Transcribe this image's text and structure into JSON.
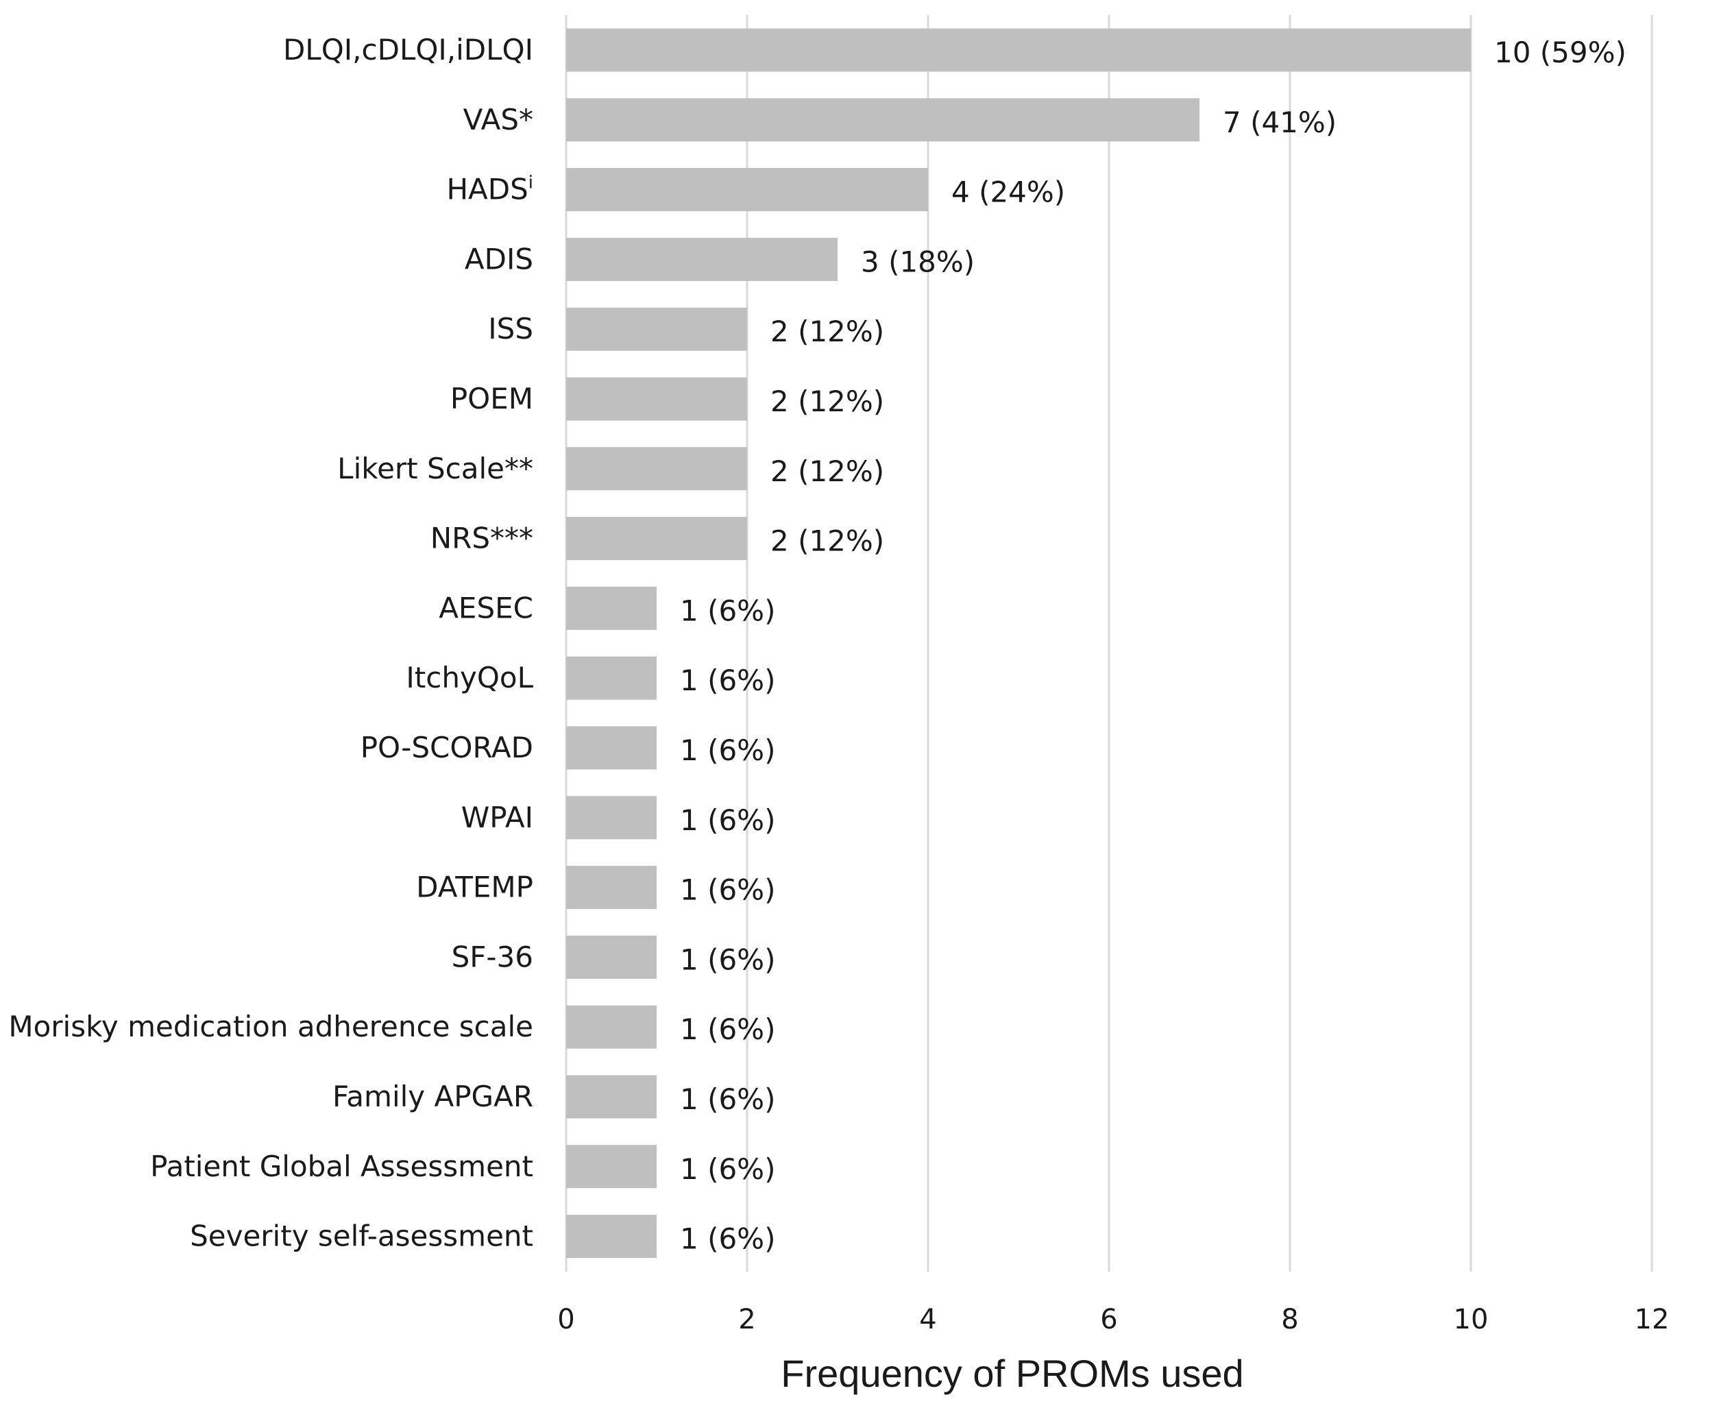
{
  "chart_data": {
    "type": "bar",
    "orientation": "horizontal",
    "title": "",
    "xlabel": "Frequency of PROMs used",
    "ylabel": "",
    "xlim": [
      0,
      12
    ],
    "xticks": [
      0,
      2,
      4,
      6,
      8,
      10,
      12
    ],
    "grid": "vertical",
    "legend": "none",
    "bar_color": "#bfbfbf",
    "grid_color": "#d9d9d9",
    "categories": [
      "DLQI,cDLQI,iDLQI",
      "VAS*",
      "HADS",
      "ADIS",
      "ISS",
      "POEM",
      "Likert Scale**",
      "NRS***",
      "AESEC",
      "ItchyQoL",
      "PO-SCORAD",
      "WPAI",
      "DATEMP",
      "SF-36",
      "Morisky medication adherence scale",
      "Family APGAR",
      "Patient Global Assessment",
      "Severity self-asessment"
    ],
    "superscripts": [
      "",
      "",
      "i",
      "",
      "",
      "",
      "",
      "",
      "",
      "",
      "",
      "",
      "",
      "",
      "",
      "",
      "",
      ""
    ],
    "values": [
      10,
      7,
      4,
      3,
      2,
      2,
      2,
      2,
      1,
      1,
      1,
      1,
      1,
      1,
      1,
      1,
      1,
      1
    ],
    "data_labels": [
      "10 (59%)",
      "7 (41%)",
      "4 (24%)",
      "3 (18%)",
      "2 (12%)",
      "2 (12%)",
      "2 (12%)",
      "2 (12%)",
      "1 (6%)",
      "1 (6%)",
      "1 (6%)",
      "1 (6%)",
      "1 (6%)",
      "1 (6%)",
      "1 (6%)",
      "1 (6%)",
      "1 (6%)",
      "1 (6%)"
    ]
  }
}
